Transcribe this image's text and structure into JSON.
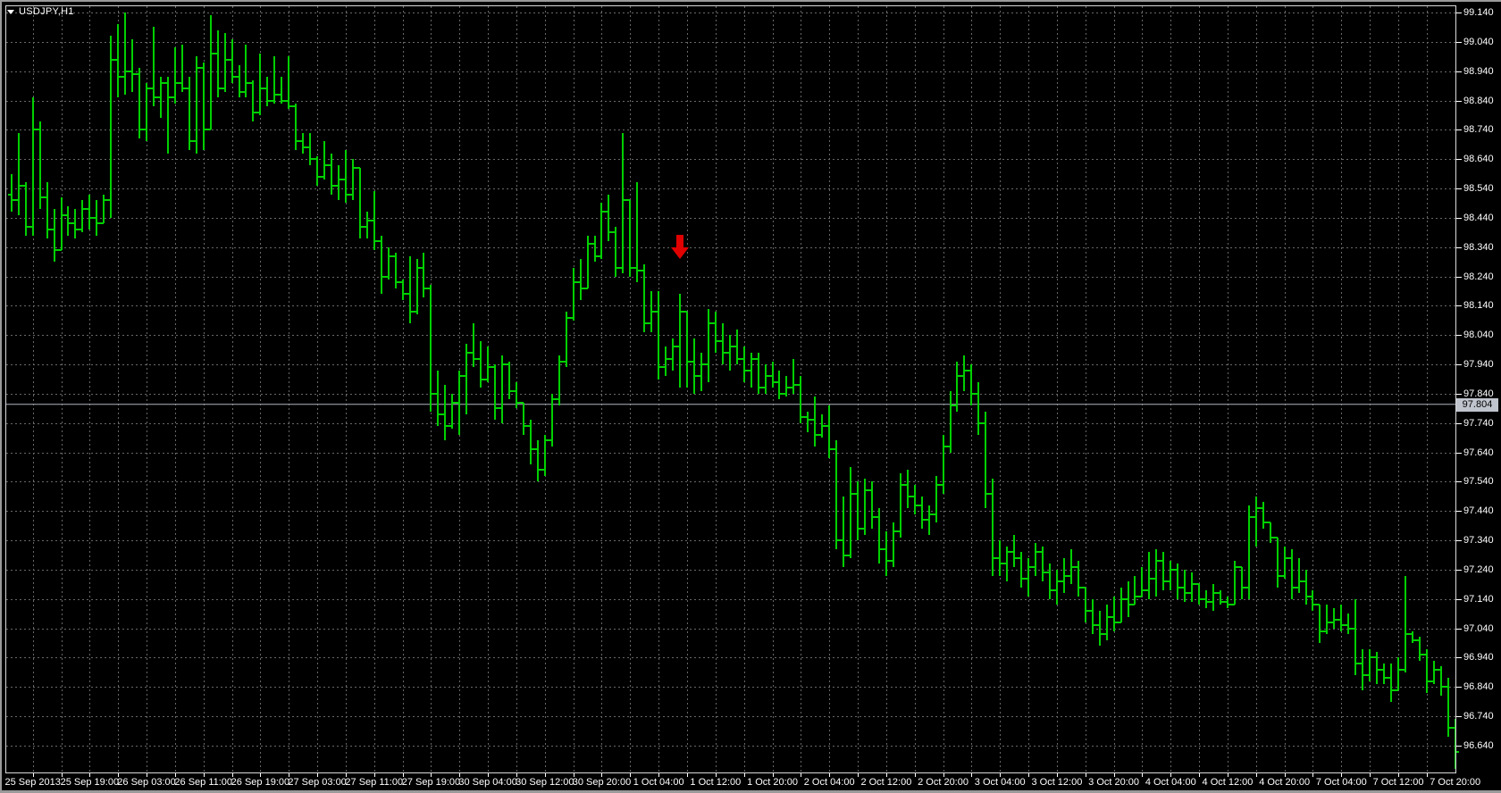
{
  "window": {
    "symbol_label": "USDJPY,H1"
  },
  "colors": {
    "background": "#000000",
    "grid": "#686868",
    "bar": "#00D000",
    "plot_border": "#dadada",
    "axis_text": "#ffffff",
    "current_price_line": "#aeb4c0",
    "badge_bg": "#c0c4cc",
    "badge_text": "#000000",
    "arrow": "#e00000",
    "frame": "#9a9a9a"
  },
  "price_axis": {
    "current_price": "97.804",
    "labels": [
      "99.140",
      "99.040",
      "98.940",
      "98.840",
      "98.740",
      "98.640",
      "98.540",
      "98.440",
      "98.340",
      "98.240",
      "98.140",
      "98.040",
      "97.940",
      "97.840",
      "97.740",
      "97.640",
      "97.540",
      "97.440",
      "97.340",
      "97.240",
      "97.140",
      "97.040",
      "96.940",
      "96.840",
      "96.740",
      "96.640"
    ]
  },
  "time_axis": {
    "labels": [
      "25 Sep 2013",
      "25 Sep 19:00",
      "26 Sep 03:00",
      "26 Sep 11:00",
      "26 Sep 19:00",
      "27 Sep 03:00",
      "27 Sep 11:00",
      "27 Sep 19:00",
      "30 Sep 04:00",
      "30 Sep 12:00",
      "30 Sep 20:00",
      "1 Oct 04:00",
      "1 Oct 12:00",
      "1 Oct 20:00",
      "2 Oct 04:00",
      "2 Oct 12:00",
      "2 Oct 20:00",
      "3 Oct 04:00",
      "3 Oct 12:00",
      "3 Oct 20:00",
      "4 Oct 04:00",
      "4 Oct 12:00",
      "4 Oct 20:00",
      "7 Oct 04:00",
      "7 Oct 12:00",
      "7 Oct 20:00"
    ]
  },
  "annotation": {
    "type": "sell-arrow",
    "label": "sell signal arrow",
    "color": "#e00000"
  },
  "chart_data": {
    "type": "ohlc_bar",
    "title": "USDJPY,H1",
    "symbol": "USDJPY",
    "timeframe": "H1",
    "legend_position": "none",
    "grid": "dashed",
    "ylim": [
      96.545,
      99.185
    ],
    "price_grid": {
      "top_label": 99.14,
      "step": 0.1,
      "count": 26
    },
    "time_labels": [
      "25 Sep 2013",
      "25 Sep 19:00",
      "26 Sep 03:00",
      "26 Sep 11:00",
      "26 Sep 19:00",
      "27 Sep 03:00",
      "27 Sep 11:00",
      "27 Sep 19:00",
      "30 Sep 04:00",
      "30 Sep 12:00",
      "30 Sep 20:00",
      "1 Oct 04:00",
      "1 Oct 12:00",
      "1 Oct 20:00",
      "2 Oct 04:00",
      "2 Oct 12:00",
      "2 Oct 20:00",
      "3 Oct 04:00",
      "3 Oct 12:00",
      "3 Oct 20:00",
      "4 Oct 04:00",
      "4 Oct 12:00",
      "4 Oct 20:00",
      "7 Oct 04:00",
      "7 Oct 12:00",
      "7 Oct 20:00"
    ],
    "first_label_bar_index": 3,
    "bars_per_label": 8,
    "grid_every_bars": 4,
    "current_price": 97.804,
    "sell_arrow": {
      "bar_index": 94,
      "tip_price": 98.3
    },
    "bars": [
      [
        98.52,
        98.59,
        98.46,
        98.5
      ],
      [
        98.5,
        98.73,
        98.45,
        98.55
      ],
      [
        98.55,
        98.56,
        98.38,
        98.41
      ],
      [
        98.41,
        98.85,
        98.38,
        98.74
      ],
      [
        98.74,
        98.77,
        98.47,
        98.51
      ],
      [
        98.51,
        98.56,
        98.37,
        98.4
      ],
      [
        98.4,
        98.47,
        98.29,
        98.33
      ],
      [
        98.33,
        98.51,
        98.33,
        98.45
      ],
      [
        98.45,
        98.48,
        98.38,
        98.42
      ],
      [
        98.42,
        98.47,
        98.37,
        98.4
      ],
      [
        98.4,
        98.5,
        98.39,
        98.47
      ],
      [
        98.47,
        98.52,
        98.4,
        98.44
      ],
      [
        98.44,
        98.5,
        98.38,
        98.42
      ],
      [
        98.42,
        98.52,
        98.42,
        98.5
      ],
      [
        98.5,
        99.06,
        98.44,
        98.98
      ],
      [
        98.98,
        99.1,
        98.85,
        98.92
      ],
      [
        98.92,
        99.14,
        98.86,
        98.94
      ],
      [
        98.94,
        99.05,
        98.87,
        98.93
      ],
      [
        98.93,
        98.95,
        98.71,
        98.74
      ],
      [
        98.74,
        98.9,
        98.7,
        98.88
      ],
      [
        98.88,
        99.09,
        98.82,
        98.85
      ],
      [
        98.85,
        98.92,
        98.78,
        98.9
      ],
      [
        98.9,
        98.92,
        98.66,
        98.85
      ],
      [
        98.85,
        99.02,
        98.83,
        98.9
      ],
      [
        98.9,
        99.03,
        98.87,
        98.88
      ],
      [
        98.88,
        98.92,
        98.67,
        98.7
      ],
      [
        98.7,
        98.99,
        98.66,
        98.95
      ],
      [
        98.95,
        98.97,
        98.67,
        98.74
      ],
      [
        98.74,
        99.13,
        98.74,
        99.0
      ],
      [
        99.0,
        99.08,
        98.85,
        98.88
      ],
      [
        98.88,
        99.07,
        98.87,
        98.98
      ],
      [
        98.98,
        99.05,
        98.9,
        98.92
      ],
      [
        98.92,
        98.96,
        98.85,
        98.87
      ],
      [
        98.87,
        99.03,
        98.85,
        98.9
      ],
      [
        98.9,
        98.91,
        98.77,
        98.8
      ],
      [
        98.8,
        99.0,
        98.79,
        98.88
      ],
      [
        98.88,
        98.92,
        98.82,
        98.84
      ],
      [
        98.84,
        98.99,
        98.83,
        98.86
      ],
      [
        98.86,
        98.92,
        98.83,
        98.84
      ],
      [
        98.84,
        98.99,
        98.81,
        98.82
      ],
      [
        98.82,
        98.83,
        98.67,
        98.7
      ],
      [
        98.7,
        98.73,
        98.66,
        98.68
      ],
      [
        98.68,
        98.73,
        98.62,
        98.64
      ],
      [
        98.64,
        98.65,
        98.55,
        98.58
      ],
      [
        98.58,
        98.7,
        98.57,
        98.62
      ],
      [
        98.62,
        98.66,
        98.52,
        98.55
      ],
      [
        98.55,
        98.62,
        98.5,
        98.57
      ],
      [
        98.57,
        98.67,
        98.49,
        98.52
      ],
      [
        98.52,
        98.64,
        98.5,
        98.61
      ],
      [
        98.61,
        98.61,
        98.37,
        98.41
      ],
      [
        98.41,
        98.46,
        98.37,
        98.43
      ],
      [
        98.43,
        98.53,
        98.33,
        98.36
      ],
      [
        98.36,
        98.38,
        98.18,
        98.24
      ],
      [
        98.24,
        98.34,
        98.23,
        98.31
      ],
      [
        98.31,
        98.32,
        98.2,
        98.22
      ],
      [
        98.22,
        98.23,
        98.16,
        98.18
      ],
      [
        98.18,
        98.31,
        98.08,
        98.12
      ],
      [
        98.12,
        98.3,
        98.11,
        98.27
      ],
      [
        98.27,
        98.32,
        98.17,
        98.2
      ],
      [
        98.2,
        98.21,
        97.78,
        97.84
      ],
      [
        97.84,
        97.92,
        97.73,
        97.77
      ],
      [
        97.77,
        97.87,
        97.68,
        97.73
      ],
      [
        97.73,
        97.84,
        97.72,
        97.81
      ],
      [
        97.81,
        97.92,
        97.7,
        97.9
      ],
      [
        97.9,
        98.01,
        97.77,
        97.98
      ],
      [
        97.98,
        98.08,
        97.93,
        97.96
      ],
      [
        97.96,
        98.02,
        97.86,
        97.89
      ],
      [
        97.89,
        98.0,
        97.88,
        97.93
      ],
      [
        97.93,
        97.94,
        97.75,
        97.79
      ],
      [
        97.79,
        97.97,
        97.74,
        97.94
      ],
      [
        97.94,
        97.95,
        97.82,
        97.85
      ],
      [
        97.85,
        97.88,
        97.79,
        97.81
      ],
      [
        97.81,
        97.81,
        97.7,
        97.73
      ],
      [
        97.73,
        97.75,
        97.6,
        97.65
      ],
      [
        97.65,
        97.68,
        97.54,
        97.58
      ],
      [
        97.58,
        97.7,
        97.56,
        97.68
      ],
      [
        97.68,
        97.84,
        97.66,
        97.82
      ],
      [
        97.82,
        97.97,
        97.8,
        97.95
      ],
      [
        97.95,
        98.12,
        97.93,
        98.1
      ],
      [
        98.1,
        98.27,
        98.09,
        98.22
      ],
      [
        98.22,
        98.3,
        98.16,
        98.2
      ],
      [
        98.2,
        98.38,
        98.2,
        98.35
      ],
      [
        98.35,
        98.38,
        98.29,
        98.31
      ],
      [
        98.31,
        98.49,
        98.3,
        98.46
      ],
      [
        98.46,
        98.52,
        98.36,
        98.39
      ],
      [
        98.39,
        98.41,
        98.24,
        98.27
      ],
      [
        98.27,
        98.73,
        98.25,
        98.5
      ],
      [
        98.5,
        98.5,
        98.24,
        98.27
      ],
      [
        98.27,
        98.56,
        98.22,
        98.26
      ],
      [
        98.26,
        98.28,
        98.05,
        98.08
      ],
      [
        98.08,
        98.19,
        98.05,
        98.12
      ],
      [
        98.12,
        98.19,
        97.89,
        97.93
      ],
      [
        97.93,
        98.0,
        97.9,
        97.96
      ],
      [
        97.96,
        98.03,
        97.92,
        98.0
      ],
      [
        98.0,
        98.18,
        97.86,
        98.12
      ],
      [
        98.12,
        98.12,
        97.86,
        97.95
      ],
      [
        97.95,
        98.03,
        97.84,
        97.9
      ],
      [
        97.9,
        97.98,
        97.85,
        97.94
      ],
      [
        97.94,
        98.13,
        97.88,
        98.08
      ],
      [
        98.08,
        98.12,
        97.98,
        98.02
      ],
      [
        98.02,
        98.08,
        97.94,
        97.98
      ],
      [
        97.98,
        98.04,
        97.92,
        98.0
      ],
      [
        98.0,
        98.06,
        97.94,
        97.96
      ],
      [
        97.96,
        98.0,
        97.88,
        97.92
      ],
      [
        97.92,
        97.98,
        97.86,
        97.96
      ],
      [
        97.96,
        97.98,
        97.84,
        97.86
      ],
      [
        97.86,
        97.94,
        97.84,
        97.9
      ],
      [
        97.9,
        97.95,
        97.86,
        97.88
      ],
      [
        97.88,
        97.92,
        97.82,
        97.84
      ],
      [
        97.84,
        97.9,
        97.83,
        97.86
      ],
      [
        97.86,
        97.96,
        97.84,
        97.87
      ],
      [
        97.87,
        97.9,
        97.74,
        97.76
      ],
      [
        97.76,
        97.78,
        97.71,
        97.75
      ],
      [
        97.75,
        97.83,
        97.66,
        97.7
      ],
      [
        97.7,
        97.77,
        97.69,
        97.73
      ],
      [
        97.73,
        97.8,
        97.62,
        97.65
      ],
      [
        97.65,
        97.68,
        97.31,
        97.34
      ],
      [
        97.34,
        97.49,
        97.25,
        97.29
      ],
      [
        97.29,
        97.59,
        97.28,
        97.5
      ],
      [
        97.5,
        97.54,
        97.34,
        97.38
      ],
      [
        97.38,
        97.55,
        97.36,
        97.51
      ],
      [
        97.51,
        97.54,
        97.38,
        97.42
      ],
      [
        97.42,
        97.45,
        97.26,
        97.31
      ],
      [
        97.31,
        97.37,
        97.22,
        97.27
      ],
      [
        97.27,
        97.4,
        97.25,
        97.37
      ],
      [
        97.37,
        97.57,
        97.35,
        97.53
      ],
      [
        97.53,
        97.58,
        97.45,
        97.49
      ],
      [
        97.49,
        97.53,
        97.43,
        97.46
      ],
      [
        97.46,
        97.49,
        97.38,
        97.41
      ],
      [
        97.41,
        97.46,
        97.36,
        97.43
      ],
      [
        97.43,
        97.56,
        97.4,
        97.53
      ],
      [
        97.53,
        97.7,
        97.5,
        97.66
      ],
      [
        97.66,
        97.85,
        97.64,
        97.8
      ],
      [
        97.8,
        97.95,
        97.78,
        97.9
      ],
      [
        97.9,
        97.97,
        97.85,
        97.92
      ],
      [
        97.92,
        97.94,
        97.8,
        97.84
      ],
      [
        97.84,
        97.88,
        97.7,
        97.74
      ],
      [
        97.74,
        97.78,
        97.45,
        97.5
      ],
      [
        97.5,
        97.55,
        97.22,
        97.28
      ],
      [
        97.28,
        97.34,
        97.22,
        97.26
      ],
      [
        97.26,
        97.32,
        97.2,
        97.3
      ],
      [
        97.3,
        97.36,
        97.25,
        97.28
      ],
      [
        97.28,
        97.3,
        97.18,
        97.21
      ],
      [
        97.21,
        97.28,
        97.15,
        97.25
      ],
      [
        97.25,
        97.33,
        97.22,
        97.3
      ],
      [
        97.3,
        97.32,
        97.2,
        97.23
      ],
      [
        97.23,
        97.26,
        97.14,
        97.17
      ],
      [
        97.17,
        97.24,
        97.12,
        97.2
      ],
      [
        97.2,
        97.28,
        97.16,
        97.22
      ],
      [
        97.22,
        97.31,
        97.19,
        97.25
      ],
      [
        97.25,
        97.27,
        97.15,
        97.18
      ],
      [
        97.18,
        97.18,
        97.06,
        97.1
      ],
      [
        97.1,
        97.14,
        97.02,
        97.05
      ],
      [
        97.05,
        97.1,
        96.98,
        97.02
      ],
      [
        97.02,
        97.12,
        97.0,
        97.08
      ],
      [
        97.08,
        97.15,
        97.03,
        97.06
      ],
      [
        97.06,
        97.18,
        97.06,
        97.14
      ],
      [
        97.14,
        97.2,
        97.08,
        97.12
      ],
      [
        97.12,
        97.22,
        97.12,
        97.15
      ],
      [
        97.15,
        97.25,
        97.15,
        97.17
      ],
      [
        97.17,
        97.3,
        97.14,
        97.21
      ],
      [
        97.21,
        97.31,
        97.15,
        97.27
      ],
      [
        97.27,
        97.3,
        97.17,
        97.2
      ],
      [
        97.2,
        97.27,
        97.17,
        97.24
      ],
      [
        97.24,
        97.26,
        97.14,
        97.18
      ],
      [
        97.18,
        97.24,
        97.13,
        97.16
      ],
      [
        97.16,
        97.23,
        97.13,
        97.19
      ],
      [
        97.19,
        97.19,
        97.12,
        97.14
      ],
      [
        97.14,
        97.17,
        97.11,
        97.13
      ],
      [
        97.13,
        97.19,
        97.1,
        97.16
      ],
      [
        97.16,
        97.17,
        97.12,
        97.13
      ],
      [
        97.13,
        97.15,
        97.11,
        97.12
      ],
      [
        97.12,
        97.27,
        97.12,
        97.25
      ],
      [
        97.25,
        97.25,
        97.14,
        97.18
      ],
      [
        97.18,
        97.46,
        97.14,
        97.42
      ],
      [
        97.42,
        97.49,
        97.32,
        97.45
      ],
      [
        97.45,
        97.47,
        97.38,
        97.4
      ],
      [
        97.4,
        97.4,
        97.33,
        97.35
      ],
      [
        97.35,
        97.35,
        97.18,
        97.22
      ],
      [
        97.22,
        97.32,
        97.21,
        97.28
      ],
      [
        97.28,
        97.31,
        97.14,
        97.18
      ],
      [
        97.18,
        97.28,
        97.16,
        97.2
      ],
      [
        97.2,
        97.24,
        97.12,
        97.15
      ],
      [
        97.15,
        97.17,
        97.1,
        97.12
      ],
      [
        97.12,
        97.12,
        96.99,
        97.03
      ],
      [
        97.03,
        97.12,
        97.02,
        97.06
      ],
      [
        97.06,
        97.11,
        97.04,
        97.07
      ],
      [
        97.07,
        97.12,
        97.03,
        97.05
      ],
      [
        97.05,
        97.09,
        97.02,
        97.04
      ],
      [
        97.04,
        97.14,
        96.88,
        96.92
      ],
      [
        96.92,
        96.97,
        96.83,
        96.88
      ],
      [
        96.88,
        96.97,
        96.86,
        96.94
      ],
      [
        96.94,
        96.96,
        96.85,
        96.9
      ],
      [
        96.9,
        96.92,
        96.85,
        96.87
      ],
      [
        96.87,
        96.92,
        96.79,
        96.83
      ],
      [
        96.83,
        96.94,
        96.83,
        96.9
      ],
      [
        96.9,
        97.22,
        96.89,
        97.02
      ],
      [
        97.02,
        97.03,
        96.99,
        97.0
      ],
      [
        97.0,
        97.01,
        96.93,
        96.95
      ],
      [
        96.95,
        96.97,
        96.82,
        96.86
      ],
      [
        96.86,
        96.93,
        96.85,
        96.9
      ],
      [
        96.9,
        96.91,
        96.81,
        96.84
      ],
      [
        96.84,
        96.87,
        96.67,
        96.7
      ],
      [
        96.7,
        96.73,
        96.56,
        96.62
      ]
    ]
  }
}
